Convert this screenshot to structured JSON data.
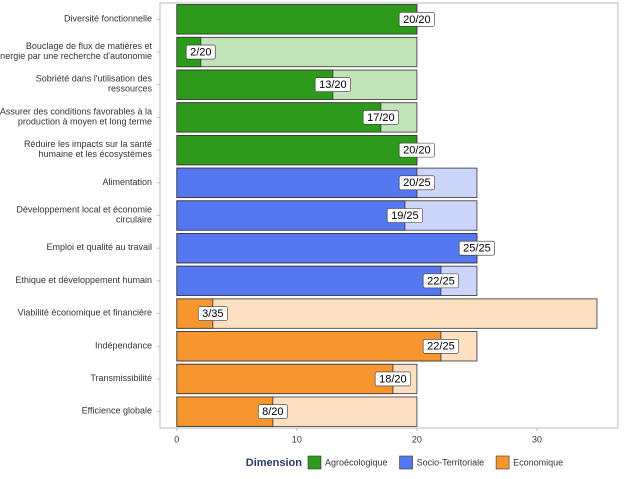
{
  "chart_data": {
    "type": "bar",
    "orientation": "horizontal",
    "categories": [
      "Diversité fonctionnelle",
      "Bouclage de flux de matières et\nd'énergie par une recherche d'autonomie",
      "Sobriété dans l'utilisation des\nressources",
      "Assurer des conditions favorables à la\nproduction à moyen et long terme",
      "Réduire les impacts sur la santé\nhumaine et les écosystèmes",
      "Alimentation",
      "Développement local et économie\ncirculaire",
      "Emploi et qualité au travail",
      "Ethique et développement humain",
      "Viabilité économique et financière",
      "Indépendance",
      "Transmissibilité",
      "Efficience globale"
    ],
    "legend_title": "Dimension",
    "series": [
      {
        "name": "Agroécologique",
        "color": "#2e9a1b",
        "light_color": "#c2e3b8",
        "values": [
          20,
          2,
          13,
          17,
          20,
          null,
          null,
          null,
          null,
          null,
          null,
          null,
          null
        ],
        "max": [
          20,
          20,
          20,
          20,
          20,
          null,
          null,
          null,
          null,
          null,
          null,
          null,
          null
        ],
        "value_labels": [
          "20/20",
          "2/20",
          "13/20",
          "17/20",
          "20/20",
          null,
          null,
          null,
          null,
          null,
          null,
          null,
          null
        ]
      },
      {
        "name": "Socio-Territoriale",
        "color": "#5577f0",
        "light_color": "#ccd6fb",
        "values": [
          null,
          null,
          null,
          null,
          null,
          20,
          19,
          25,
          22,
          null,
          null,
          null,
          null
        ],
        "max": [
          null,
          null,
          null,
          null,
          null,
          25,
          25,
          25,
          25,
          null,
          null,
          null,
          null
        ],
        "value_labels": [
          null,
          null,
          null,
          null,
          null,
          "20/25",
          "19/25",
          "25/25",
          "22/25",
          null,
          null,
          null,
          null
        ]
      },
      {
        "name": "Economique",
        "color": "#f7962e",
        "light_color": "#fde0c2",
        "values": [
          null,
          null,
          null,
          null,
          null,
          null,
          null,
          null,
          null,
          3,
          22,
          18,
          8
        ],
        "max": [
          null,
          null,
          null,
          null,
          null,
          null,
          null,
          null,
          null,
          35,
          25,
          20,
          20
        ],
        "value_labels": [
          null,
          null,
          null,
          null,
          null,
          null,
          null,
          null,
          null,
          "3/35",
          "22/25",
          "18/20",
          "8/20"
        ]
      }
    ],
    "xlim": [
      -1.4,
      36.75
    ],
    "xticks": [
      0,
      10,
      20,
      30
    ],
    "grid": false
  }
}
